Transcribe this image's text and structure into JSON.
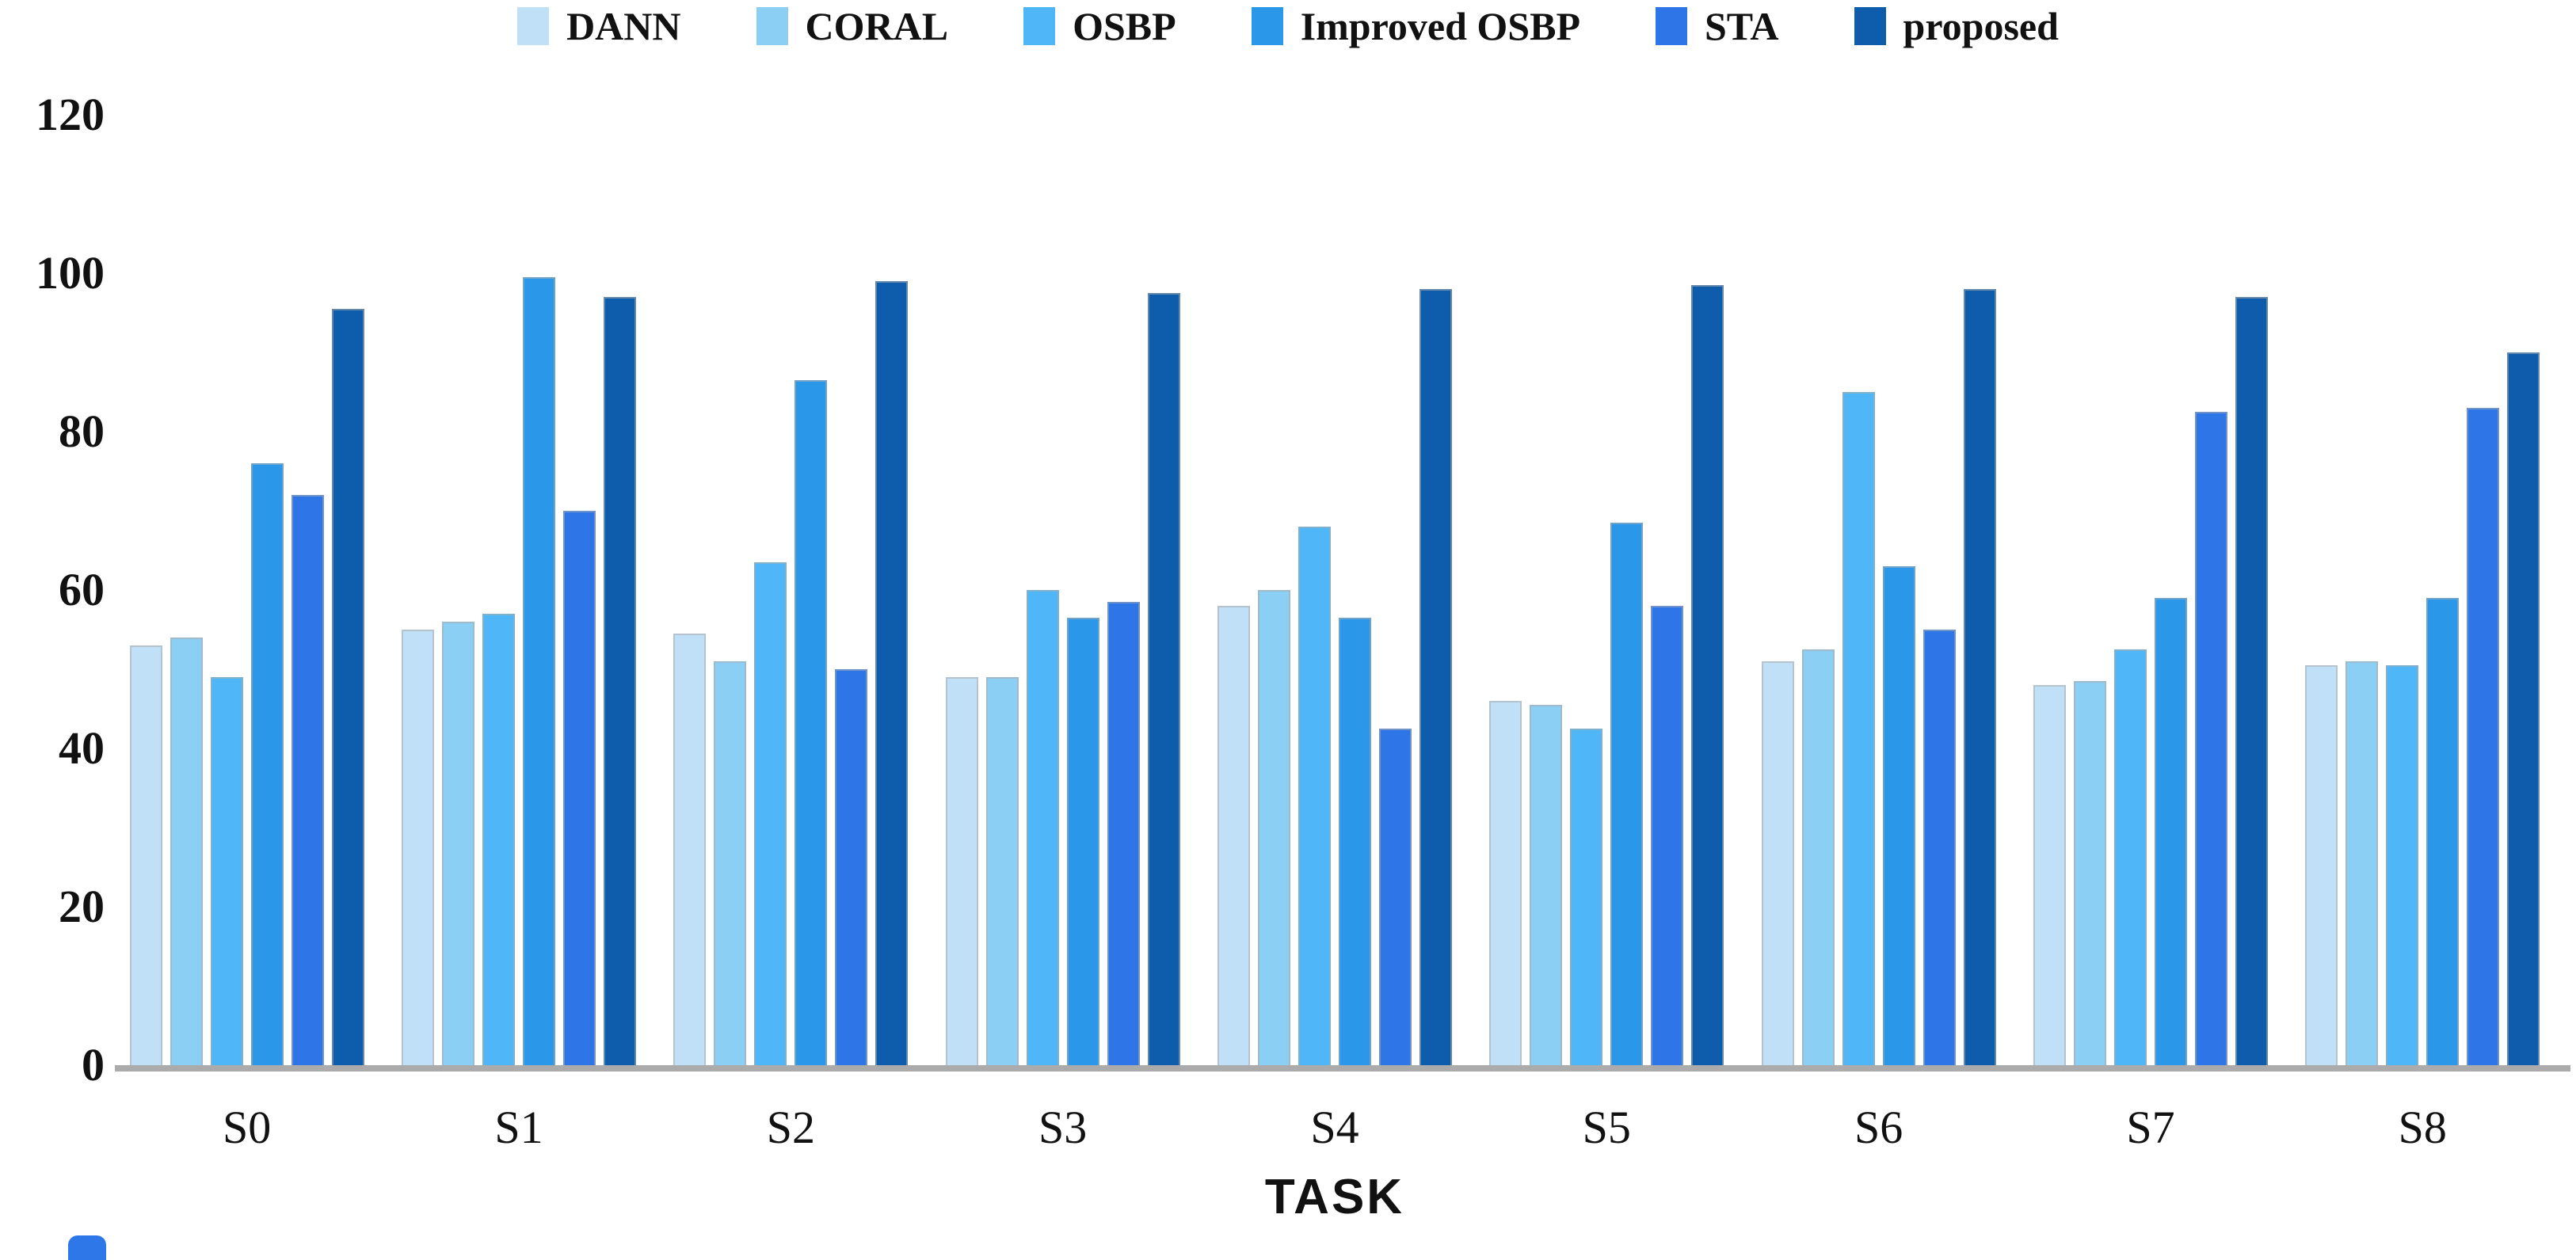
{
  "chart_data": {
    "type": "bar",
    "title": "",
    "categories": [
      "S0",
      "S1",
      "S2",
      "S3",
      "S4",
      "S5",
      "S6",
      "S7",
      "S8"
    ],
    "series": [
      {
        "name": "DANN",
        "color": "#BFE0F7",
        "values": [
          53,
          55,
          54.5,
          49,
          58,
          46,
          51,
          48,
          50.5
        ]
      },
      {
        "name": "CORAL",
        "color": "#8CCFF5",
        "values": [
          54,
          56,
          51,
          49,
          60,
          45.5,
          52.5,
          48.5,
          51
        ]
      },
      {
        "name": "OSBP",
        "color": "#4FB6F7",
        "values": [
          49,
          57,
          63.5,
          60,
          68,
          42.5,
          85,
          52.5,
          50.5
        ]
      },
      {
        "name": "Improved OSBP",
        "color": "#2B97E8",
        "values": [
          76,
          99.5,
          86.5,
          56.5,
          56.5,
          68.5,
          63,
          59,
          59
        ]
      },
      {
        "name": "STA",
        "color": "#2E76E8",
        "values": [
          72,
          70,
          50,
          58.5,
          42.5,
          58,
          55,
          82.5,
          83
        ]
      },
      {
        "name": "proposed",
        "color": "#0E5DAD",
        "values": [
          95.5,
          97,
          99,
          97.5,
          98,
          98.5,
          98,
          97,
          90
        ]
      }
    ],
    "xlabel": "TASK",
    "ylabel": "",
    "ylim": [
      0,
      120
    ],
    "yticks": [
      0,
      20,
      40,
      60,
      80,
      100,
      120
    ],
    "legend_position": "top",
    "grid": false
  },
  "style": {
    "axis_line_color": "#ABABAB",
    "text_color": "#111111",
    "background": "#FFFFFF",
    "corner_accent_color": "#2E77E8"
  }
}
